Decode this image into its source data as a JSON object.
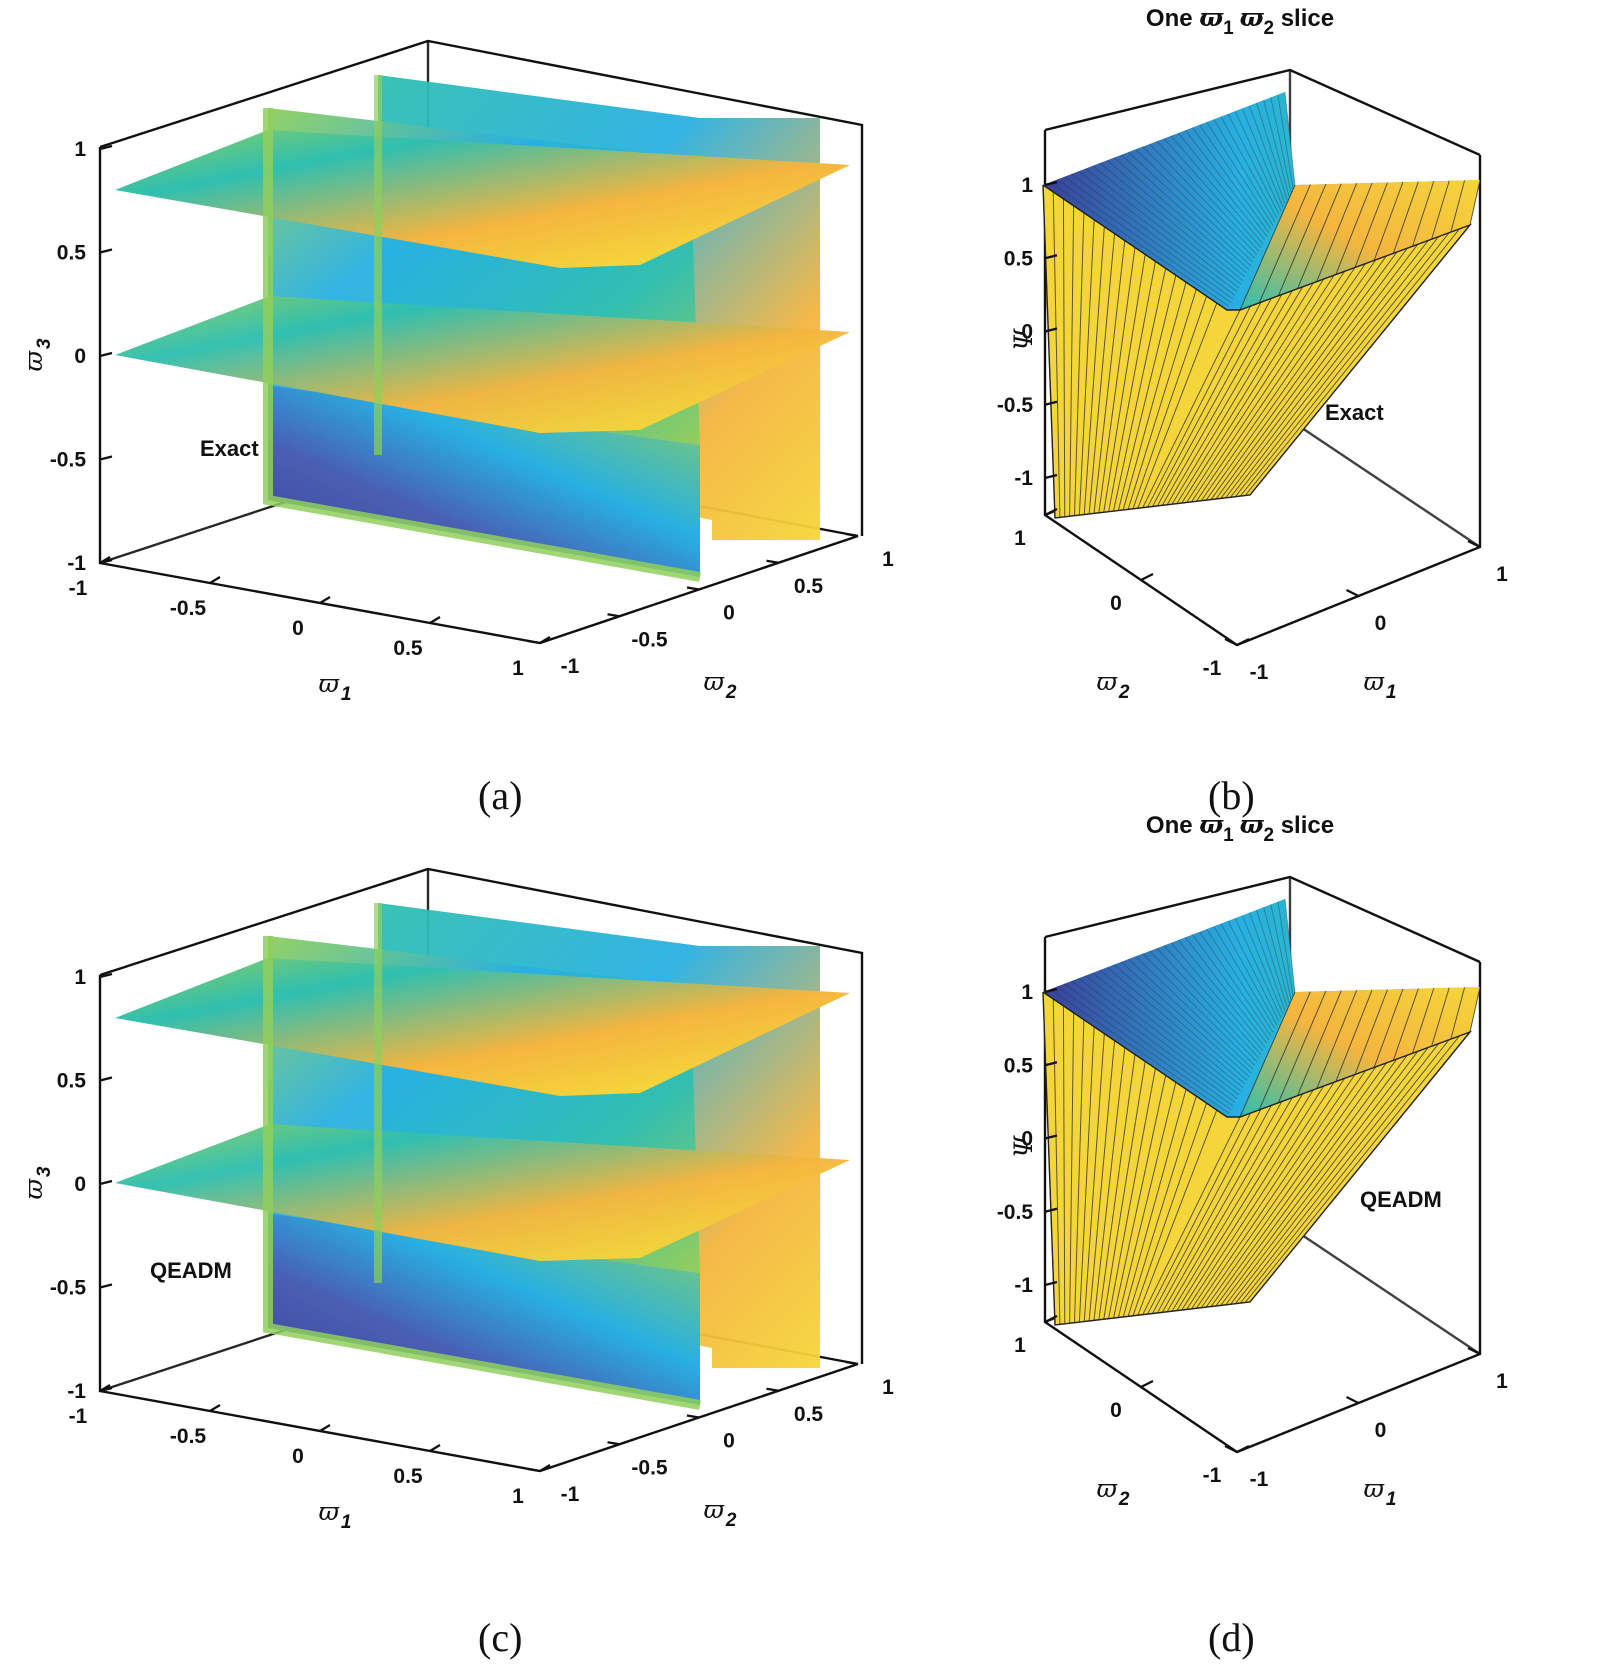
{
  "captions": {
    "a": "(a)",
    "b": "(b)",
    "c": "(c)",
    "d": "(d)"
  },
  "colors": {
    "yellow": "#f5d63a",
    "orange": "#f4b53f",
    "green": "#8fcf5c",
    "teal": "#2fbfb0",
    "cyan": "#28b0e2",
    "blue": "#4a5fb3",
    "navy": "#3a3f98"
  },
  "chart_data": [
    {
      "panel": "a",
      "type": "volume-slice",
      "annotation": "Exact",
      "xlabel": {
        "sym": "ϖ",
        "sub": "1"
      },
      "ylabel": {
        "sym": "ϖ",
        "sub": "2"
      },
      "zlabel": {
        "sym": "ϖ",
        "sub": "3"
      },
      "x_ticks": [
        "-1",
        "-0.5",
        "0",
        "0.5",
        "1"
      ],
      "y_ticks": [
        "-1",
        "-0.5",
        "0",
        "0.5",
        "1"
      ],
      "z_ticks": [
        "-1",
        "-0.5",
        "0",
        "0.5",
        "1"
      ],
      "xlim": [
        -1,
        1
      ],
      "ylim": [
        -1,
        1
      ],
      "zlim": [
        -1,
        1
      ],
      "slices": {
        "horizontal_z": [
          0.8,
          0
        ],
        "vertical_y": [
          -0.8,
          0.8
        ]
      }
    },
    {
      "panel": "b",
      "type": "surface",
      "title": {
        "pre": "One ",
        "s1": "ϖ",
        "sub1": "1",
        "s2": "ϖ",
        "sub2": "2",
        "post": " slice"
      },
      "annotation": "Exact",
      "xlabel": {
        "sym": "ϖ",
        "sub": "1"
      },
      "ylabel": {
        "sym": "ϖ",
        "sub": "2"
      },
      "zlabel": "Ψ",
      "x_ticks": [
        "-1",
        "0",
        "1"
      ],
      "y_ticks": [
        "-1",
        "0",
        "1"
      ],
      "z_ticks": [
        "-1",
        "-0.5",
        "0",
        "0.5",
        "1"
      ]
    },
    {
      "panel": "c",
      "type": "volume-slice",
      "annotation": "QEADM",
      "xlabel": {
        "sym": "ϖ",
        "sub": "1"
      },
      "ylabel": {
        "sym": "ϖ",
        "sub": "2"
      },
      "zlabel": {
        "sym": "ϖ",
        "sub": "3"
      },
      "x_ticks": [
        "-1",
        "-0.5",
        "0",
        "0.5",
        "1"
      ],
      "y_ticks": [
        "-1",
        "-0.5",
        "0",
        "0.5",
        "1"
      ],
      "z_ticks": [
        "-1",
        "-0.5",
        "0",
        "0.5",
        "1"
      ],
      "xlim": [
        -1,
        1
      ],
      "ylim": [
        -1,
        1
      ],
      "zlim": [
        -1,
        1
      ],
      "slices": {
        "horizontal_z": [
          0.8,
          0
        ],
        "vertical_y": [
          -0.8,
          0.8
        ]
      }
    },
    {
      "panel": "d",
      "type": "surface",
      "title": {
        "pre": "One ",
        "s1": "ϖ",
        "sub1": "1",
        "s2": "ϖ",
        "sub2": "2",
        "post": " slice"
      },
      "annotation": "QEADM",
      "xlabel": {
        "sym": "ϖ",
        "sub": "1"
      },
      "ylabel": {
        "sym": "ϖ",
        "sub": "2"
      },
      "zlabel": "Ψ",
      "x_ticks": [
        "-1",
        "0",
        "1"
      ],
      "y_ticks": [
        "-1",
        "0",
        "1"
      ],
      "z_ticks": [
        "-1",
        "-0.5",
        "0",
        "0.5",
        "1"
      ]
    }
  ]
}
